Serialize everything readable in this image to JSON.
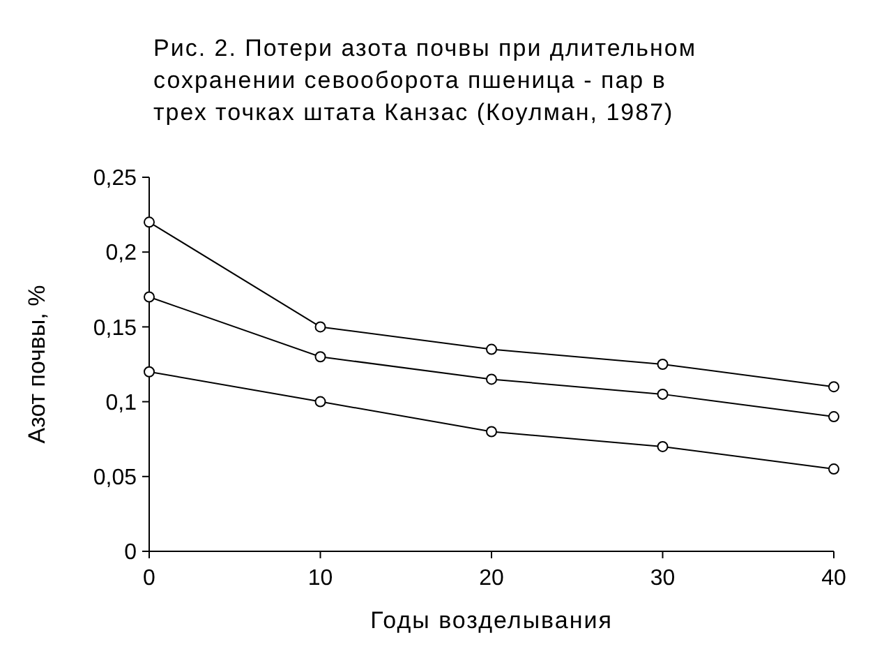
{
  "chart_data": {
    "type": "line",
    "title": "Рис. 2. Потери азота почвы при длительном\nсохранении севооборота пшеница - пар в\nтрех точках штата Канзас (Коулман, 1987)",
    "xlabel": "Годы возделывания",
    "ylabel": "Азот почвы, %",
    "x": [
      0,
      10,
      20,
      30,
      40
    ],
    "series": [
      {
        "color": "#000000",
        "values": [
          0.22,
          0.15,
          0.135,
          0.125,
          0.11
        ]
      },
      {
        "color": "#000000",
        "values": [
          0.17,
          0.13,
          0.115,
          0.105,
          0.09
        ]
      },
      {
        "color": "#000000",
        "values": [
          0.12,
          0.1,
          0.08,
          0.07,
          0.055
        ]
      }
    ],
    "xlim": [
      0,
      40
    ],
    "xticks": [
      0,
      10,
      20,
      30,
      40
    ],
    "ylim": [
      0,
      0.25
    ],
    "yticks": [
      0,
      {
        "value": 0.05,
        "label": "0,05"
      },
      {
        "value": 0.1,
        "label": "0,1"
      },
      {
        "value": 0.15,
        "label": "0,15"
      },
      {
        "value": 0.2,
        "label": "0,2"
      },
      {
        "value": 0.25,
        "label": "0,25"
      }
    ],
    "marker": "circle",
    "line_style": "solid"
  }
}
